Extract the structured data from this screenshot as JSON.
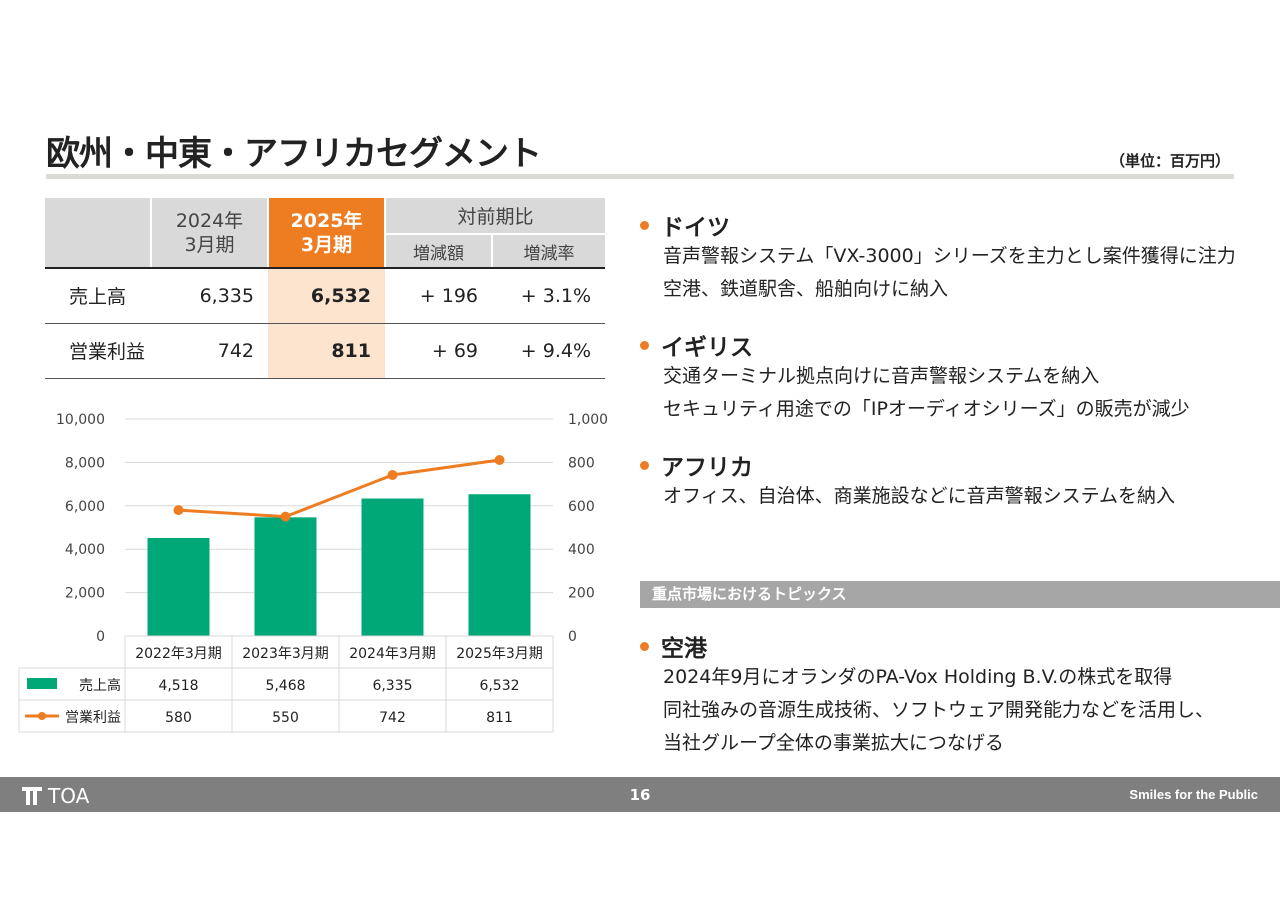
{
  "title": "欧州・中東・アフリカセグメント",
  "unit": "（単位：百万円）",
  "summary_table": {
    "col_prev_line1": "2024年",
    "col_prev_line2": "3月期",
    "col_cur_line1": "2025年",
    "col_cur_line2": "3月期",
    "col_yoy": "対前期比",
    "col_diff": "増減額",
    "col_rate": "増減率",
    "rows": [
      {
        "label": "売上高",
        "prev": "6,335",
        "cur": "6,532",
        "diff": "+ 196",
        "rate": "+ 3.1%"
      },
      {
        "label": "営業利益",
        "prev": "742",
        "cur": "811",
        "diff": "+ 69",
        "rate": "+ 9.4%"
      }
    ]
  },
  "chart_data": {
    "type": "bar",
    "categories": [
      "2022年3月期",
      "2023年3月期",
      "2024年3月期",
      "2025年3月期"
    ],
    "series": [
      {
        "name": "売上高",
        "type": "bar",
        "axis": "left",
        "values": [
          4518,
          5468,
          6335,
          6532
        ],
        "labels": [
          "4,518",
          "5,468",
          "6,335",
          "6,532"
        ],
        "color": "#00a878"
      },
      {
        "name": "営業利益",
        "type": "line",
        "axis": "right",
        "values": [
          580,
          550,
          742,
          811
        ],
        "labels": [
          "580",
          "550",
          "742",
          "811"
        ],
        "color": "#ee7d21"
      }
    ],
    "ylim_left": [
      0,
      10000
    ],
    "ylim_right": [
      0,
      1000
    ],
    "left_ticks": [
      "0",
      "2,000",
      "4,000",
      "6,000",
      "8,000",
      "10,000"
    ],
    "right_ticks": [
      "0",
      "200",
      "400",
      "600",
      "800",
      "1,000"
    ],
    "grid": true,
    "legend": "data-table"
  },
  "topics": [
    {
      "head": "ドイツ",
      "lines": [
        "音声警報システム「VX-3000」シリーズを主力とし案件獲得に注力",
        "空港、鉄道駅舎、船舶向けに納入"
      ]
    },
    {
      "head": "イギリス",
      "lines": [
        "交通ターミナル拠点向けに音声警報システムを納入",
        "セキュリティ用途での「IPオーディオシリーズ」の販売が減少"
      ]
    },
    {
      "head": "アフリカ",
      "lines": [
        "オフィス、自治体、商業施設などに音声警報システムを納入"
      ]
    }
  ],
  "focus_band": "重点市場におけるトピックス",
  "focus_topic": {
    "head": "空港",
    "lines": [
      "2024年9月にオランダのPA-Vox Holding B.V.の株式を取得",
      "同社強みの音源生成技術、ソフトウェア開発能力などを活用し、",
      "当社グループ全体の事業拡大につなげる"
    ]
  },
  "footer": {
    "logo_text": "TOA",
    "page": "16",
    "tagline": "Smiles for the Public"
  },
  "colors": {
    "accent": "#ee7d21",
    "bar": "#00a878",
    "footer": "#7f7f7f"
  }
}
